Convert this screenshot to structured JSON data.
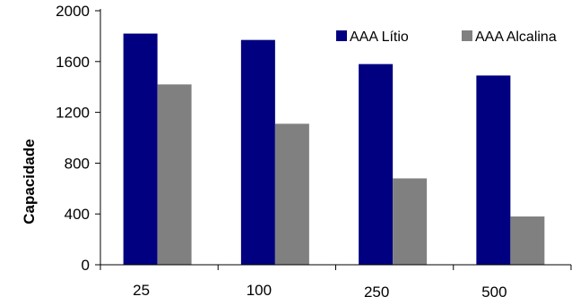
{
  "chart_data": {
    "type": "bar",
    "title": "",
    "xlabel": "",
    "ylabel": "Capacidade",
    "categories": [
      "25",
      "100",
      "250",
      "500"
    ],
    "series": [
      {
        "name": "AAA Lítio",
        "values": [
          1820,
          1770,
          1580,
          1490
        ],
        "color": "#000080"
      },
      {
        "name": "AAA Alcalina",
        "values": [
          1420,
          1110,
          680,
          380
        ],
        "color": "#808080"
      }
    ],
    "ylim": [
      0,
      2000
    ],
    "yticks": [
      0,
      400,
      800,
      1200,
      1600,
      2000
    ],
    "grid": false,
    "legend_position": "top-right"
  }
}
